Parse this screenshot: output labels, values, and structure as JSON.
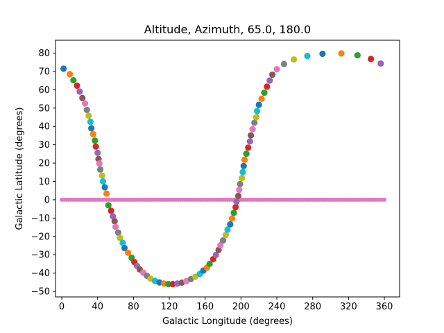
{
  "chart_data": {
    "type": "scatter",
    "title": "Altitude, Azimuth, 65.0, 180.0",
    "xlabel": "Galactic Longitude (degrees)",
    "ylabel": "Galactic Latitude (degrees)",
    "xlim": [
      -7,
      377
    ],
    "ylim": [
      -53,
      87
    ],
    "xticks": [
      0,
      40,
      80,
      120,
      160,
      200,
      240,
      280,
      320,
      360
    ],
    "yticks": [
      -50,
      -40,
      -30,
      -20,
      -10,
      0,
      10,
      20,
      30,
      40,
      50,
      60,
      70,
      80
    ],
    "grid": false,
    "legend": "none",
    "colors": [
      "#1f77b4",
      "#ff7f0e",
      "#2ca02c",
      "#d62728",
      "#9467bd",
      "#8c564b",
      "#e377c2",
      "#7f7f7f",
      "#bcbd22",
      "#17becf"
    ],
    "series": [
      {
        "role": "curve",
        "points": [
          [
            2,
            71.5
          ],
          [
            9,
            68.5
          ],
          [
            13,
            65.2
          ],
          [
            17,
            62.2
          ],
          [
            20,
            59
          ],
          [
            23,
            55.5
          ],
          [
            26,
            52.5
          ],
          [
            28,
            49
          ],
          [
            30,
            45.8
          ],
          [
            32,
            42.5
          ],
          [
            33,
            39
          ],
          [
            35,
            35.8
          ],
          [
            37,
            32.3
          ],
          [
            38,
            29
          ],
          [
            40,
            25.6
          ],
          [
            41,
            22.2
          ],
          [
            42,
            19.8
          ],
          [
            43,
            16.5
          ],
          [
            45,
            13.2
          ],
          [
            46,
            10
          ],
          [
            48,
            6.8
          ],
          [
            50,
            3.4
          ],
          [
            52,
            -3
          ],
          [
            55,
            -6
          ],
          [
            57,
            -9
          ],
          [
            59,
            -11.7
          ],
          [
            60,
            -14.8
          ],
          [
            63,
            -17.9
          ],
          [
            65,
            -20.8
          ],
          [
            68,
            -23.5
          ],
          [
            70,
            -26.3
          ],
          [
            74,
            -28.9
          ],
          [
            78,
            -31.6
          ],
          [
            81,
            -34
          ],
          [
            84,
            -36.1
          ],
          [
            87,
            -38
          ],
          [
            91,
            -39.8
          ],
          [
            95,
            -41.5
          ],
          [
            99,
            -43
          ],
          [
            104,
            -44.2
          ],
          [
            109,
            -45.1
          ],
          [
            114,
            -45.7
          ],
          [
            119,
            -46
          ],
          [
            124,
            -46
          ],
          [
            129,
            -45.7
          ],
          [
            134,
            -45.2
          ],
          [
            139,
            -44.4
          ],
          [
            144,
            -43.3
          ],
          [
            149,
            -42
          ],
          [
            154,
            -40.4
          ],
          [
            158,
            -38.6
          ],
          [
            162,
            -37
          ],
          [
            165,
            -35
          ],
          [
            169,
            -32.4
          ],
          [
            172,
            -30.1
          ],
          [
            175,
            -27.4
          ],
          [
            177,
            -24.8
          ],
          [
            180,
            -22.2
          ],
          [
            183,
            -19.2
          ],
          [
            185,
            -16.3
          ],
          [
            188,
            -13.4
          ],
          [
            190,
            -10.2
          ],
          [
            192,
            -7.1
          ],
          [
            194,
            -4
          ],
          [
            195,
            -1
          ],
          [
            197,
            2.1
          ],
          [
            198,
            5.4
          ],
          [
            199,
            8.6
          ],
          [
            201,
            11.9
          ],
          [
            202,
            15.1
          ],
          [
            203,
            18.4
          ],
          [
            204,
            21.8
          ],
          [
            206,
            25.1
          ],
          [
            208,
            28.4
          ],
          [
            210,
            31.8
          ],
          [
            211,
            35.1
          ],
          [
            213,
            38.5
          ],
          [
            215,
            42
          ],
          [
            217,
            45
          ],
          [
            218,
            48.4
          ],
          [
            220,
            51.8
          ],
          [
            223,
            55.1
          ],
          [
            226,
            58.4
          ],
          [
            229,
            61.7
          ],
          [
            232,
            65
          ],
          [
            235,
            68.2
          ],
          [
            240,
            71.2
          ],
          [
            248,
            74
          ],
          [
            259,
            76.5
          ],
          [
            274,
            78.4
          ],
          [
            291,
            79.6
          ],
          [
            312,
            79.8
          ],
          [
            330,
            78.8
          ],
          [
            345,
            76.8
          ],
          [
            356,
            74.3
          ]
        ]
      },
      {
        "role": "equator",
        "color": "#e377c2",
        "x_start": 0,
        "x_end": 360,
        "x_step": 2.5,
        "y": 0
      }
    ]
  }
}
